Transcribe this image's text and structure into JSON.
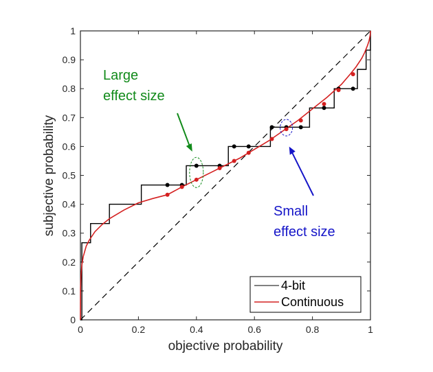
{
  "chart_data": {
    "type": "line",
    "title": "",
    "xlabel": "objective probability",
    "ylabel": "subjective probability",
    "xlim": [
      0,
      1
    ],
    "ylim": [
      0,
      1
    ],
    "x_ticks": [
      0,
      0.2,
      0.4,
      0.6,
      0.8,
      1
    ],
    "x_tick_labels": [
      "0",
      "0.2",
      "0.4",
      "0.6",
      "0.8",
      "1"
    ],
    "y_ticks": [
      0,
      0.1,
      0.2,
      0.3,
      0.4,
      0.5,
      0.6,
      0.7,
      0.8,
      0.9,
      1
    ],
    "y_tick_labels": [
      "0",
      "0.1",
      "0.2",
      "0.3",
      "0.4",
      "0.5",
      "0.6",
      "0.7",
      "0.8",
      "0.9",
      "1"
    ],
    "grid": false,
    "legend": {
      "placement": "bottom-right",
      "entries": [
        {
          "label": "4-bit",
          "color": "#000000"
        },
        {
          "label": "Continuous",
          "color": "#d42020"
        }
      ]
    },
    "series": [
      {
        "name": "4-bit",
        "kind": "step",
        "color": "#000000",
        "steps": [
          {
            "x0": 0.0,
            "x1": 0.005,
            "y": 0.0
          },
          {
            "x0": 0.005,
            "x1": 0.005,
            "y": 0.2
          },
          {
            "x0": 0.005,
            "x1": 0.035,
            "y": 0.2667
          },
          {
            "x0": 0.035,
            "x1": 0.1,
            "y": 0.3333
          },
          {
            "x0": 0.1,
            "x1": 0.21,
            "y": 0.4
          },
          {
            "x0": 0.21,
            "x1": 0.365,
            "y": 0.4667
          },
          {
            "x0": 0.365,
            "x1": 0.51,
            "y": 0.5333
          },
          {
            "x0": 0.51,
            "x1": 0.655,
            "y": 0.6
          },
          {
            "x0": 0.655,
            "x1": 0.79,
            "y": 0.6667
          },
          {
            "x0": 0.79,
            "x1": 0.875,
            "y": 0.7333
          },
          {
            "x0": 0.875,
            "x1": 0.955,
            "y": 0.8
          },
          {
            "x0": 0.955,
            "x1": 0.985,
            "y": 0.8667
          },
          {
            "x0": 0.985,
            "x1": 1.0,
            "y": 0.9333
          }
        ],
        "markers": [
          {
            "x": 0.3,
            "y": 0.4667
          },
          {
            "x": 0.35,
            "y": 0.4667
          },
          {
            "x": 0.4,
            "y": 0.5333
          },
          {
            "x": 0.48,
            "y": 0.5333
          },
          {
            "x": 0.53,
            "y": 0.6
          },
          {
            "x": 0.58,
            "y": 0.6
          },
          {
            "x": 0.66,
            "y": 0.6667
          },
          {
            "x": 0.71,
            "y": 0.6667
          },
          {
            "x": 0.76,
            "y": 0.6667
          },
          {
            "x": 0.84,
            "y": 0.7333
          },
          {
            "x": 0.89,
            "y": 0.8
          },
          {
            "x": 0.94,
            "y": 0.8
          }
        ]
      },
      {
        "name": "Continuous",
        "kind": "curve",
        "color": "#d42020",
        "x": [
          0,
          0.0005,
          0.002,
          0.005,
          0.01,
          0.02,
          0.03,
          0.05,
          0.075,
          0.1,
          0.15,
          0.2,
          0.25,
          0.3,
          0.35,
          0.4,
          0.45,
          0.5,
          0.55,
          0.6,
          0.65,
          0.7,
          0.75,
          0.8,
          0.85,
          0.9,
          0.93,
          0.95,
          0.97,
          0.98,
          0.99,
          0.995,
          0.999,
          1.0
        ],
        "y": [
          0,
          0.11,
          0.155,
          0.19,
          0.22,
          0.255,
          0.275,
          0.305,
          0.33,
          0.35,
          0.38,
          0.405,
          0.42,
          0.433,
          0.46,
          0.485,
          0.51,
          0.535,
          0.56,
          0.59,
          0.62,
          0.655,
          0.69,
          0.73,
          0.77,
          0.815,
          0.85,
          0.875,
          0.905,
          0.925,
          0.95,
          0.965,
          0.985,
          1.0
        ],
        "markers": [
          {
            "x": 0.3,
            "y": 0.433
          },
          {
            "x": 0.35,
            "y": 0.46
          },
          {
            "x": 0.4,
            "y": 0.485
          },
          {
            "x": 0.48,
            "y": 0.525
          },
          {
            "x": 0.53,
            "y": 0.55
          },
          {
            "x": 0.58,
            "y": 0.578
          },
          {
            "x": 0.66,
            "y": 0.626
          },
          {
            "x": 0.71,
            "y": 0.66
          },
          {
            "x": 0.76,
            "y": 0.69
          },
          {
            "x": 0.84,
            "y": 0.747
          },
          {
            "x": 0.89,
            "y": 0.795
          },
          {
            "x": 0.94,
            "y": 0.85
          }
        ]
      },
      {
        "name": "identity",
        "kind": "dashed-line",
        "color": "#000000",
        "x": [
          0,
          1
        ],
        "y": [
          0,
          1
        ]
      }
    ],
    "annotations": [
      {
        "text_lines": [
          "Large",
          "effect size"
        ],
        "color": "#118a1a",
        "arrow_to": {
          "x": 0.4,
          "y": 0.575
        },
        "ellipse_center": {
          "x": 0.4,
          "y": 0.51
        },
        "ellipse_style": "dashed"
      },
      {
        "text_lines": [
          "Small",
          "effect size"
        ],
        "color": "#1515c8",
        "arrow_to": {
          "x": 0.715,
          "y": 0.635
        },
        "ellipse_center": {
          "x": 0.71,
          "y": 0.665
        },
        "ellipse_style": "dashed"
      }
    ]
  }
}
